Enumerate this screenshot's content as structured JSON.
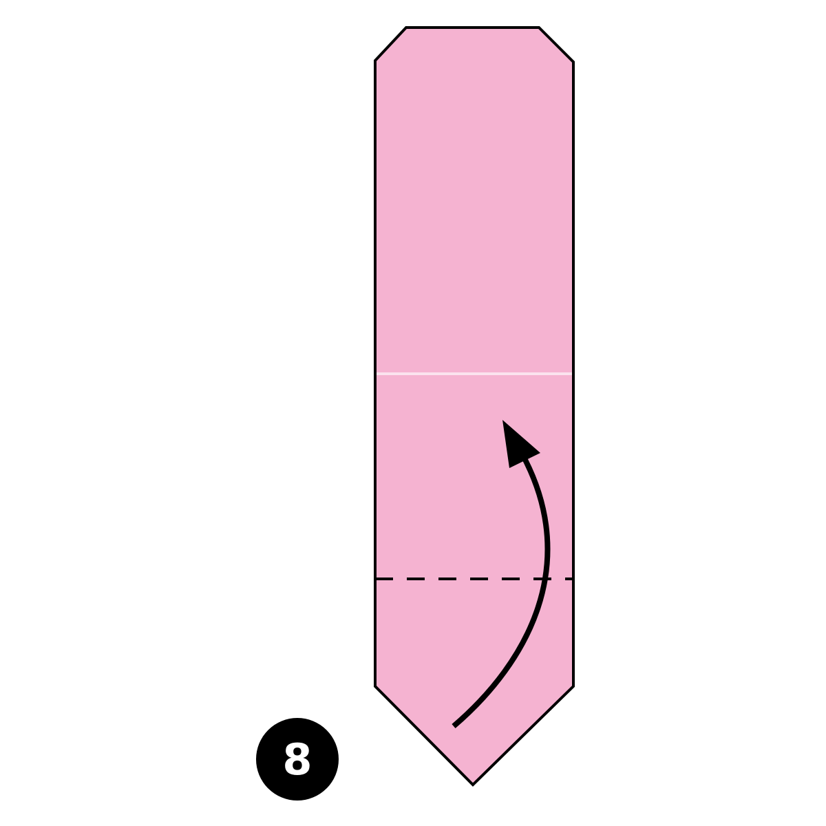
{
  "diagram": {
    "step": {
      "number": "8"
    },
    "colors": {
      "paper_fill": "#F5B3D1",
      "outline": "#000000",
      "crease_line": "#FBE3EE",
      "fold_line": "#000000",
      "arrow": "#000000",
      "badge_fill": "#000000",
      "badge_text": "#FFFFFF",
      "background": "#FFFFFF"
    },
    "instructions": {
      "fold_type": "valley-fold",
      "arrow_direction": "up"
    }
  }
}
